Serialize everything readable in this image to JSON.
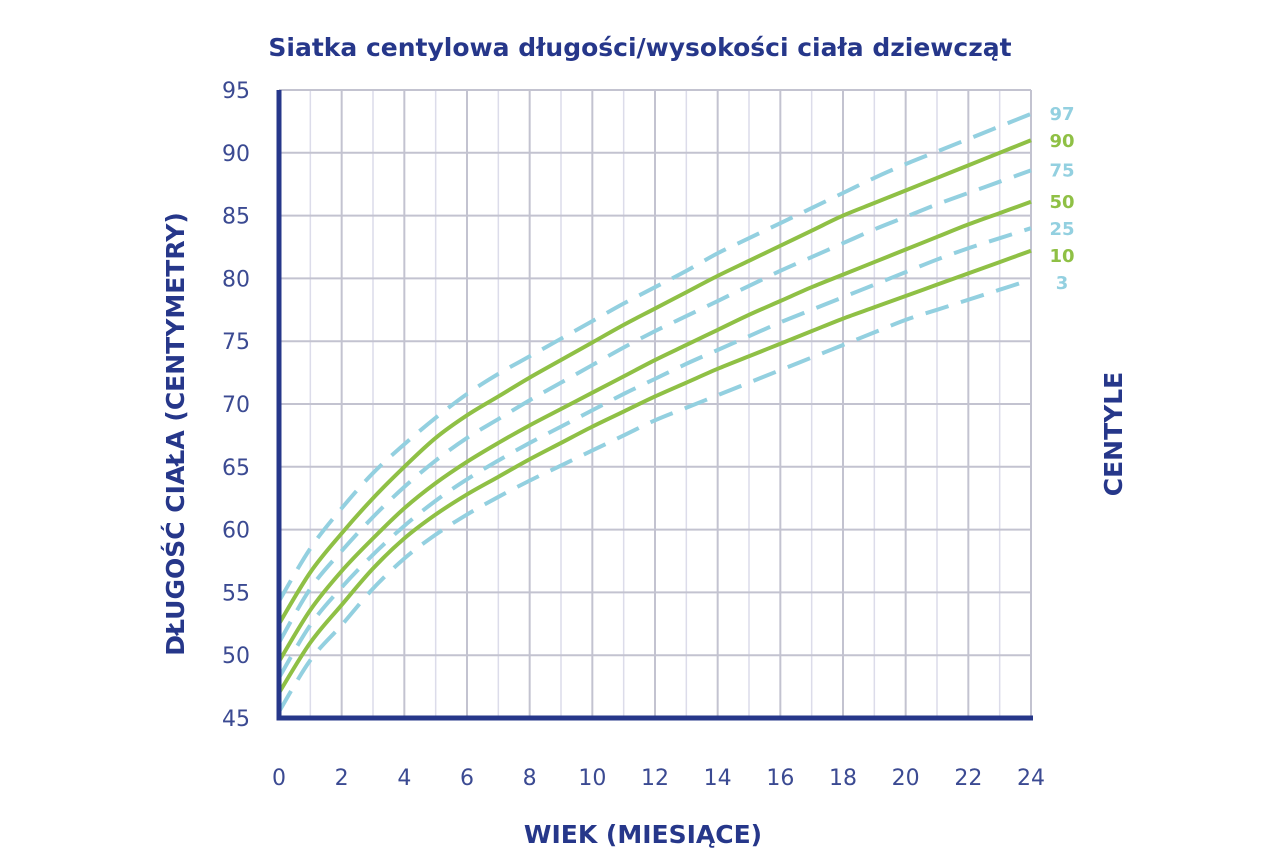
{
  "chart_data": {
    "type": "line",
    "title": "Siatka centylowa długości/wysokości ciała dziewcząt",
    "xlabel": "WIEK (MIESIĄCE)",
    "ylabel": "DŁUGOŚĆ CIAŁA (CENTYMETRY)",
    "legend_title": "CENTYLE",
    "xlim": [
      0,
      24
    ],
    "ylim": [
      45,
      95
    ],
    "x_ticks": [
      "0",
      "2",
      "4",
      "6",
      "8",
      "10",
      "12",
      "14",
      "16",
      "18",
      "20",
      "22",
      "24"
    ],
    "y_ticks": [
      "45",
      "50",
      "55",
      "60",
      "65",
      "70",
      "75",
      "80",
      "85",
      "90",
      "95"
    ],
    "grid": true,
    "legend_position": "right",
    "series": [
      {
        "name": "97",
        "color": "#93d0e0",
        "style": "dashed",
        "x": [
          0,
          1,
          2,
          3,
          4,
          5,
          6,
          7,
          8,
          9,
          10,
          11,
          12,
          13,
          14,
          15,
          16,
          17,
          18,
          19,
          20,
          21,
          22,
          23,
          24
        ],
        "y": [
          54.3,
          58.5,
          61.7,
          64.5,
          66.8,
          68.9,
          70.8,
          72.4,
          73.8,
          75.2,
          76.6,
          78.0,
          79.3,
          80.6,
          82.0,
          83.2,
          84.4,
          85.6,
          86.8,
          88.0,
          89.1,
          90.1,
          91.1,
          92.1,
          93.1
        ]
      },
      {
        "name": "90",
        "color": "#8fc045",
        "style": "solid",
        "x": [
          0,
          1,
          2,
          3,
          4,
          5,
          6,
          7,
          8,
          9,
          10,
          11,
          12,
          13,
          14,
          15,
          16,
          17,
          18,
          19,
          20,
          21,
          22,
          23,
          24
        ],
        "y": [
          52.5,
          56.6,
          59.7,
          62.5,
          65.0,
          67.3,
          69.1,
          70.6,
          72.1,
          73.5,
          74.9,
          76.3,
          77.6,
          78.9,
          80.2,
          81.4,
          82.6,
          83.8,
          85.0,
          86.0,
          87.0,
          88.0,
          89.0,
          90.0,
          91.0
        ]
      },
      {
        "name": "75",
        "color": "#93d0e0",
        "style": "dashed",
        "x": [
          0,
          1,
          2,
          3,
          4,
          5,
          6,
          7,
          8,
          9,
          10,
          11,
          12,
          13,
          14,
          15,
          16,
          17,
          18,
          19,
          20,
          21,
          22,
          23,
          24
        ],
        "y": [
          51.0,
          55.3,
          58.3,
          61.0,
          63.4,
          65.5,
          67.3,
          68.8,
          70.3,
          71.7,
          73.1,
          74.5,
          75.8,
          77.0,
          78.2,
          79.4,
          80.6,
          81.7,
          82.8,
          83.9,
          84.9,
          85.9,
          86.8,
          87.7,
          88.6
        ]
      },
      {
        "name": "50",
        "color": "#8fc045",
        "style": "solid",
        "x": [
          0,
          1,
          2,
          3,
          4,
          5,
          6,
          7,
          8,
          9,
          10,
          11,
          12,
          13,
          14,
          15,
          16,
          17,
          18,
          19,
          20,
          21,
          22,
          23,
          24
        ],
        "y": [
          49.5,
          53.6,
          56.7,
          59.3,
          61.7,
          63.7,
          65.4,
          66.9,
          68.3,
          69.6,
          70.9,
          72.2,
          73.5,
          74.7,
          75.9,
          77.1,
          78.2,
          79.3,
          80.3,
          81.3,
          82.3,
          83.3,
          84.3,
          85.2,
          86.1
        ]
      },
      {
        "name": "25",
        "color": "#93d0e0",
        "style": "dashed",
        "x": [
          0,
          1,
          2,
          3,
          4,
          5,
          6,
          7,
          8,
          9,
          10,
          11,
          12,
          13,
          14,
          15,
          16,
          17,
          18,
          19,
          20,
          21,
          22,
          23,
          24
        ],
        "y": [
          48.2,
          52.4,
          55.4,
          58.0,
          60.3,
          62.3,
          64.0,
          65.5,
          66.9,
          68.2,
          69.5,
          70.8,
          72.0,
          73.2,
          74.3,
          75.4,
          76.5,
          77.5,
          78.5,
          79.5,
          80.5,
          81.5,
          82.4,
          83.2,
          84.0
        ]
      },
      {
        "name": "10",
        "color": "#8fc045",
        "style": "solid",
        "x": [
          0,
          1,
          2,
          3,
          4,
          5,
          6,
          7,
          8,
          9,
          10,
          11,
          12,
          13,
          14,
          15,
          16,
          17,
          18,
          19,
          20,
          21,
          22,
          23,
          24
        ],
        "y": [
          47.0,
          51.0,
          54.0,
          56.9,
          59.3,
          61.2,
          62.8,
          64.2,
          65.6,
          66.9,
          68.2,
          69.4,
          70.6,
          71.7,
          72.8,
          73.8,
          74.8,
          75.8,
          76.8,
          77.7,
          78.6,
          79.5,
          80.4,
          81.3,
          82.2
        ]
      },
      {
        "name": "3",
        "color": "#93d0e0",
        "style": "dashed",
        "x": [
          0,
          1,
          2,
          3,
          4,
          5,
          6,
          7,
          8,
          9,
          10,
          11,
          12,
          13,
          14,
          15,
          16,
          17,
          18,
          19,
          20,
          21,
          22,
          23,
          24
        ],
        "y": [
          45.5,
          49.6,
          52.4,
          55.3,
          57.7,
          59.6,
          61.2,
          62.6,
          63.9,
          65.1,
          66.3,
          67.5,
          68.7,
          69.7,
          70.7,
          71.7,
          72.7,
          73.7,
          74.7,
          75.7,
          76.7,
          77.5,
          78.3,
          79.1,
          79.9
        ]
      }
    ],
    "legend_labels": [
      "97",
      "90",
      "75",
      "50",
      "25",
      "10",
      "3"
    ]
  }
}
